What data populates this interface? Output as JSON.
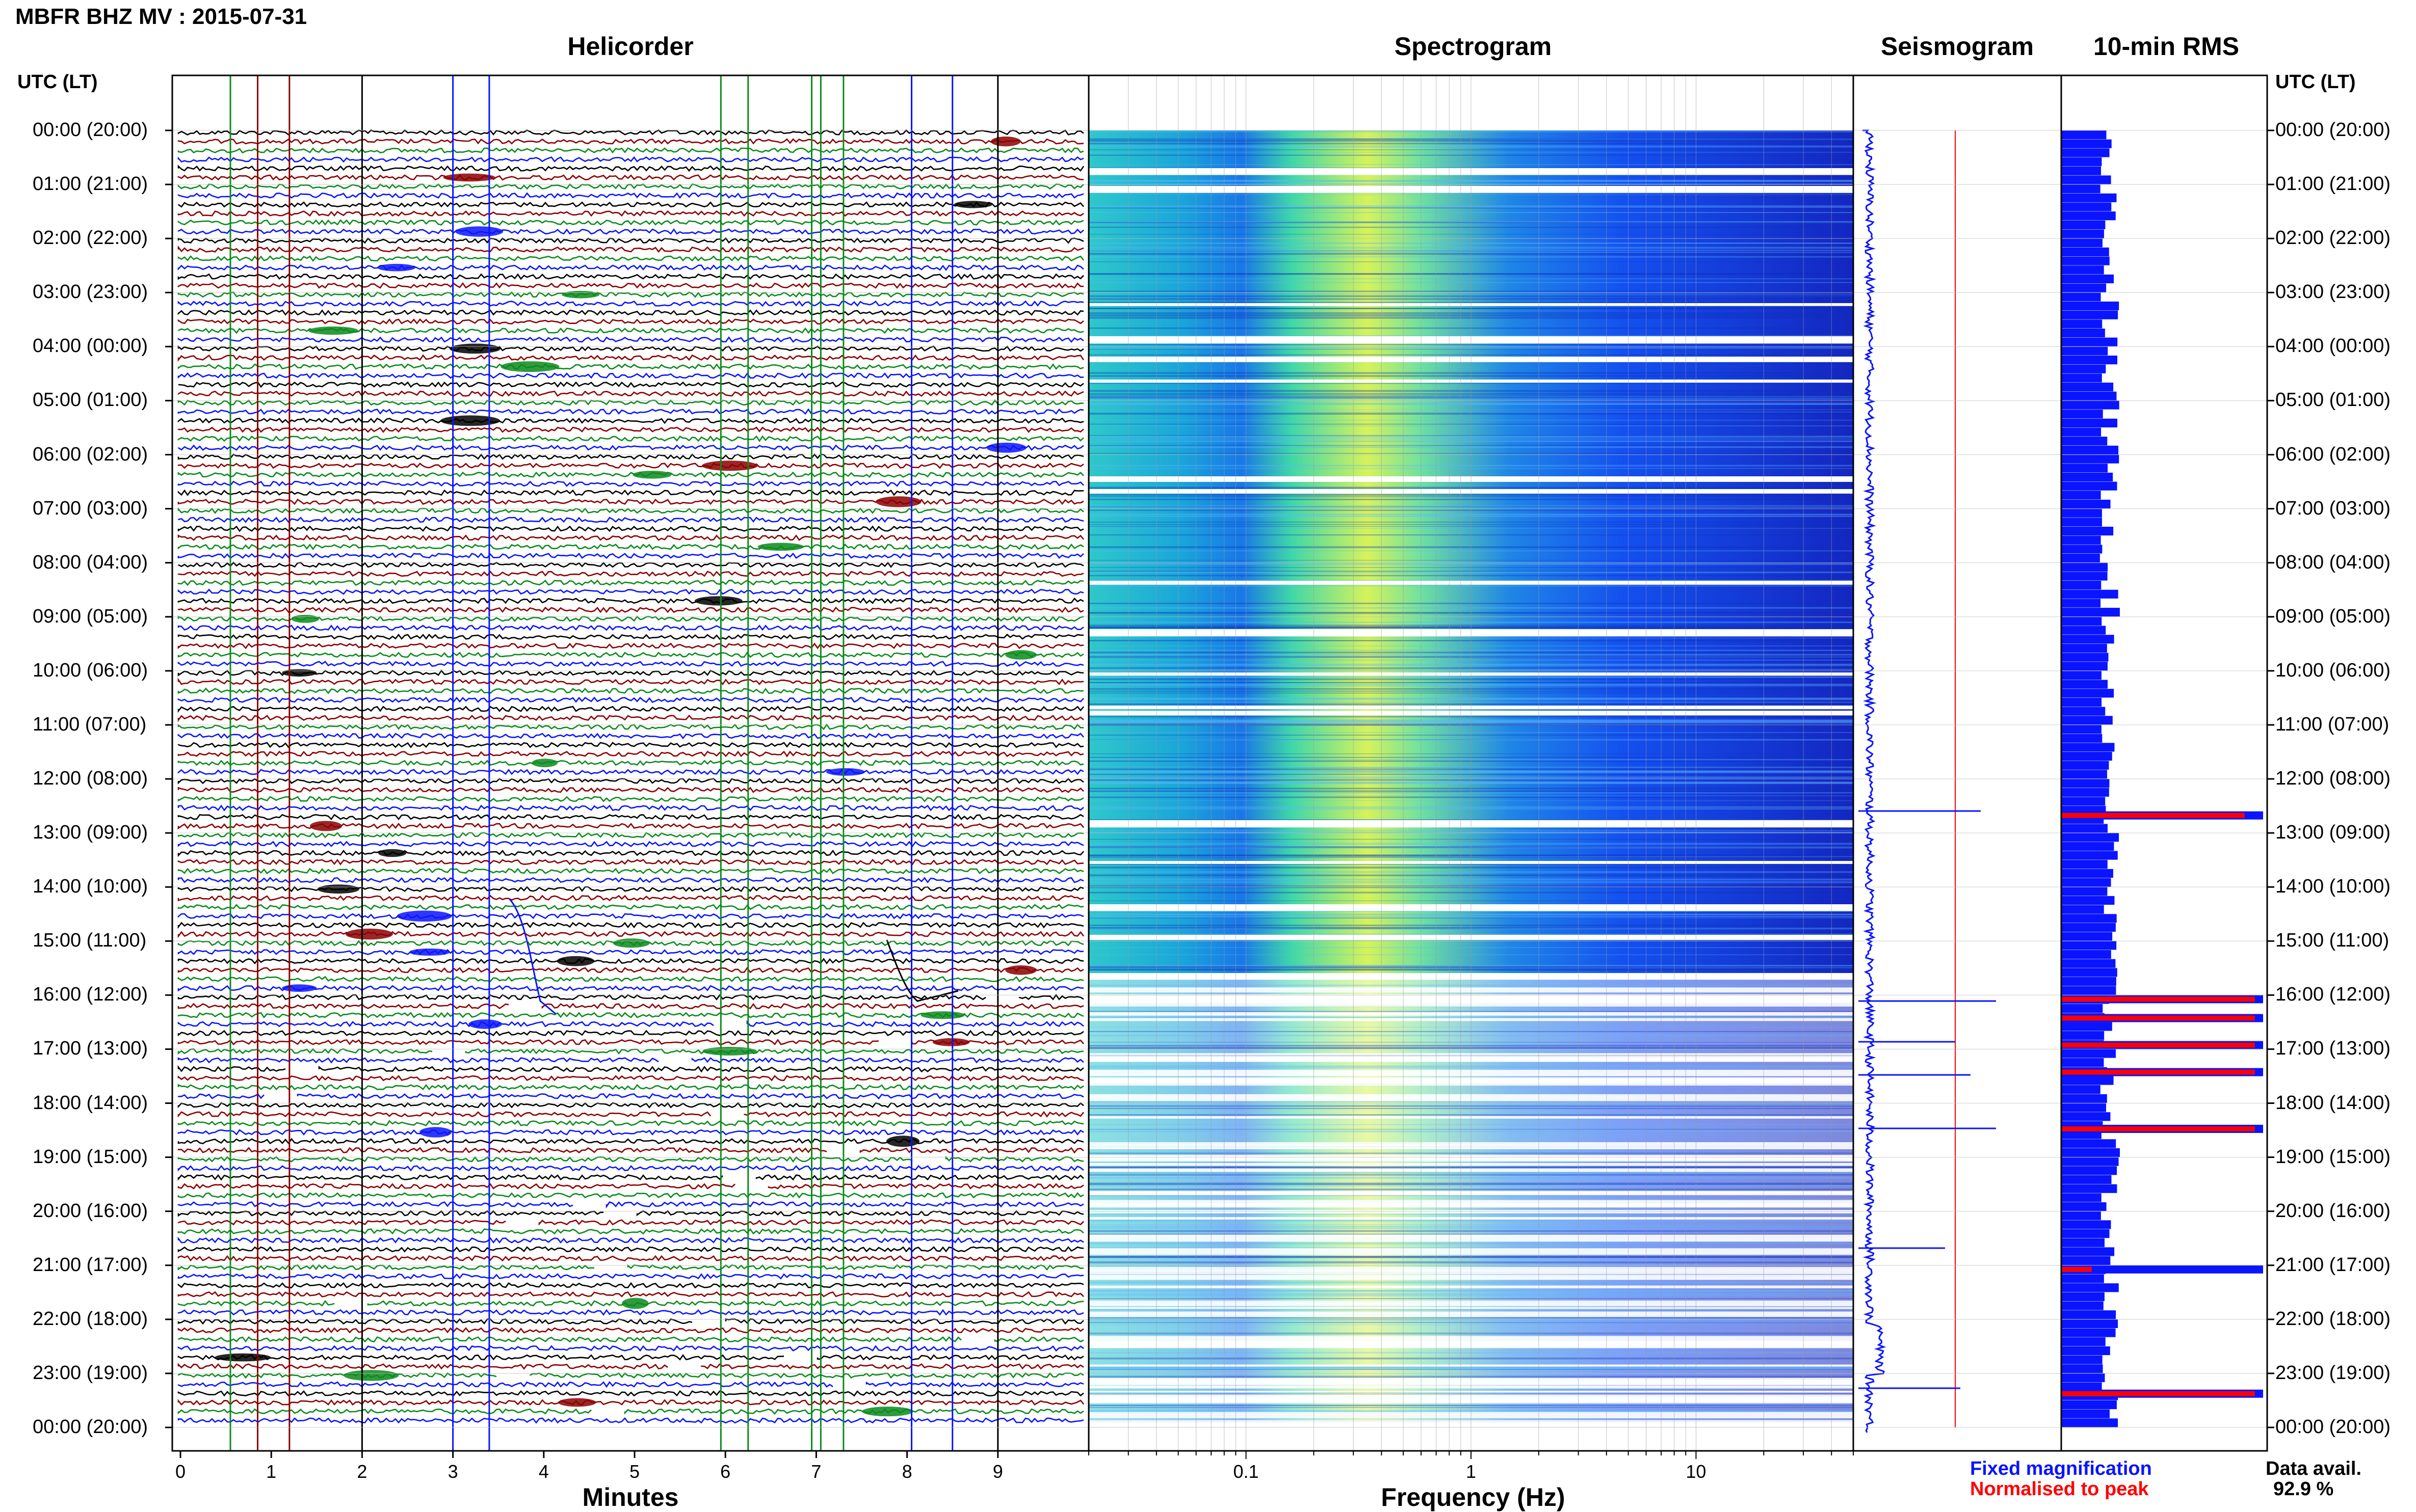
{
  "header": {
    "station": "MBFR BHZ MV : 2015-07-31"
  },
  "panels": {
    "helicorder": "Helicorder",
    "spectrogram": "Spectrogram",
    "seismogram": "Seismogram",
    "rms": "10-min RMS"
  },
  "axes": {
    "time_header_left": "UTC (LT)",
    "time_header_right": "UTC (LT)",
    "helicorder_xlabel": "Minutes",
    "spectrogram_xlabel": "Frequency (Hz)"
  },
  "legend": {
    "fixed": "Fixed magnification",
    "normalised": "Normalised to peak",
    "data_avail_label": "Data avail.",
    "data_avail_value": "92.9 %"
  },
  "colors": {
    "blue": "#0a14ff",
    "red": "#ff0000",
    "green": "#0b8a1c",
    "dark_red": "#8b0000",
    "black": "#000000"
  },
  "chart_data": [
    {
      "type": "line",
      "name": "helicorder",
      "xlabel": "Minutes",
      "xlim": [
        0,
        10
      ],
      "x_ticks": [
        "0",
        "1",
        "2",
        "3",
        "4",
        "5",
        "6",
        "7",
        "8",
        "9"
      ],
      "time_labels": [
        "00:00 (20:00)",
        "01:00 (21:00)",
        "02:00 (22:00)",
        "03:00 (23:00)",
        "04:00 (00:00)",
        "05:00 (01:00)",
        "06:00 (02:00)",
        "07:00 (03:00)",
        "08:00 (04:00)",
        "09:00 (05:00)",
        "10:00 (06:00)",
        "11:00 (07:00)",
        "12:00 (08:00)",
        "13:00 (09:00)",
        "14:00 (10:00)",
        "15:00 (11:00)",
        "16:00 (12:00)",
        "17:00 (13:00)",
        "18:00 (14:00)",
        "19:00 (15:00)",
        "20:00 (16:00)",
        "21:00 (17:00)",
        "22:00 (18:00)",
        "23:00 (19:00)",
        "00:00 (20:00)"
      ],
      "traces_per_hour": 6,
      "trace_color_cycle": [
        "black",
        "dark_red",
        "green",
        "blue"
      ]
    },
    {
      "type": "heatmap",
      "name": "spectrogram",
      "xlabel": "Frequency (Hz)",
      "x_scale": "log",
      "xlim": [
        0.02,
        50
      ],
      "x_ticks": [
        "0.1",
        "1",
        "10"
      ],
      "peak_band_hz": [
        0.2,
        0.6
      ]
    },
    {
      "type": "line",
      "name": "seismogram",
      "fixed_color": "blue",
      "normalised_color": "red"
    },
    {
      "type": "bar",
      "name": "10-min RMS",
      "orientation": "horizontal",
      "fixed_color": "blue",
      "normalised_color": "red",
      "spike_hours": [
        12.6,
        16.0,
        16.35,
        16.85,
        17.35,
        18.4,
        21.0,
        23.3
      ]
    }
  ]
}
